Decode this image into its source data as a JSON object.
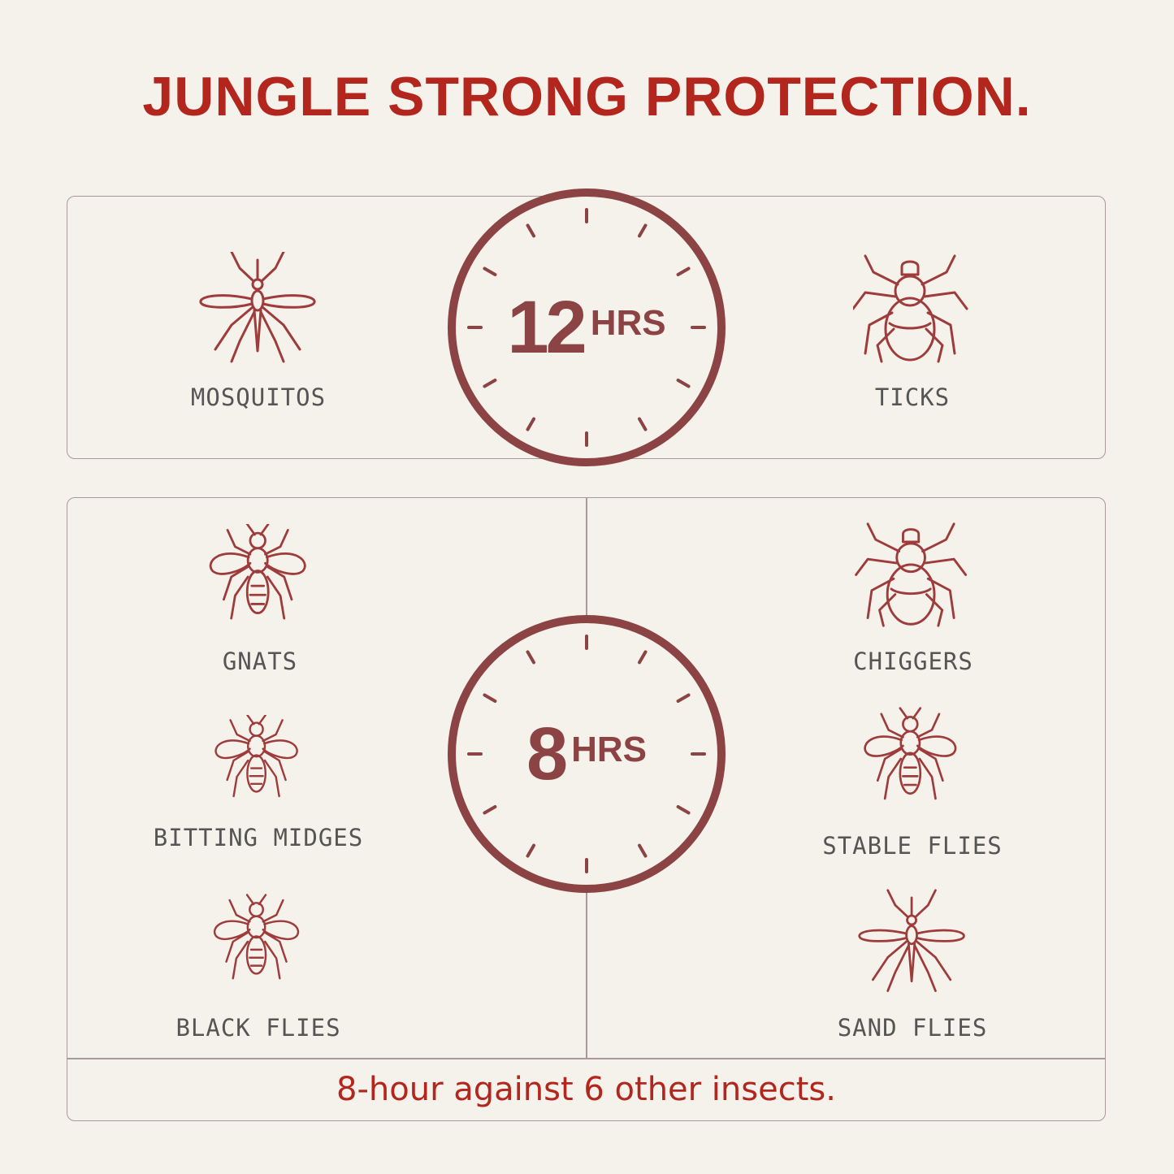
{
  "title": "JUNGLE STRONG PROTECTION.",
  "colors": {
    "background": "#f5f1eb",
    "accent": "#b3261e",
    "clock": "#8b4343",
    "icon": "#9e3b3b",
    "label": "#555555"
  },
  "long_protection": {
    "duration_number": "12",
    "duration_unit": "HRS",
    "insects": [
      {
        "label": "MOSQUITOS",
        "icon": "mosquito-icon"
      },
      {
        "label": "TICKS",
        "icon": "tick-icon"
      }
    ]
  },
  "short_protection": {
    "duration_number": "8",
    "duration_unit": "HRS",
    "insects": [
      {
        "label": "GNATS",
        "icon": "gnat-icon"
      },
      {
        "label": "CHIGGERS",
        "icon": "chigger-icon"
      },
      {
        "label": "BITTING MIDGES",
        "icon": "midge-icon"
      },
      {
        "label": "STABLE FLIES",
        "icon": "stable-fly-icon"
      },
      {
        "label": "BLACK FLIES",
        "icon": "black-fly-icon"
      },
      {
        "label": "SAND FLIES",
        "icon": "sand-fly-icon"
      }
    ]
  },
  "footer": "8-hour against 6 other insects."
}
